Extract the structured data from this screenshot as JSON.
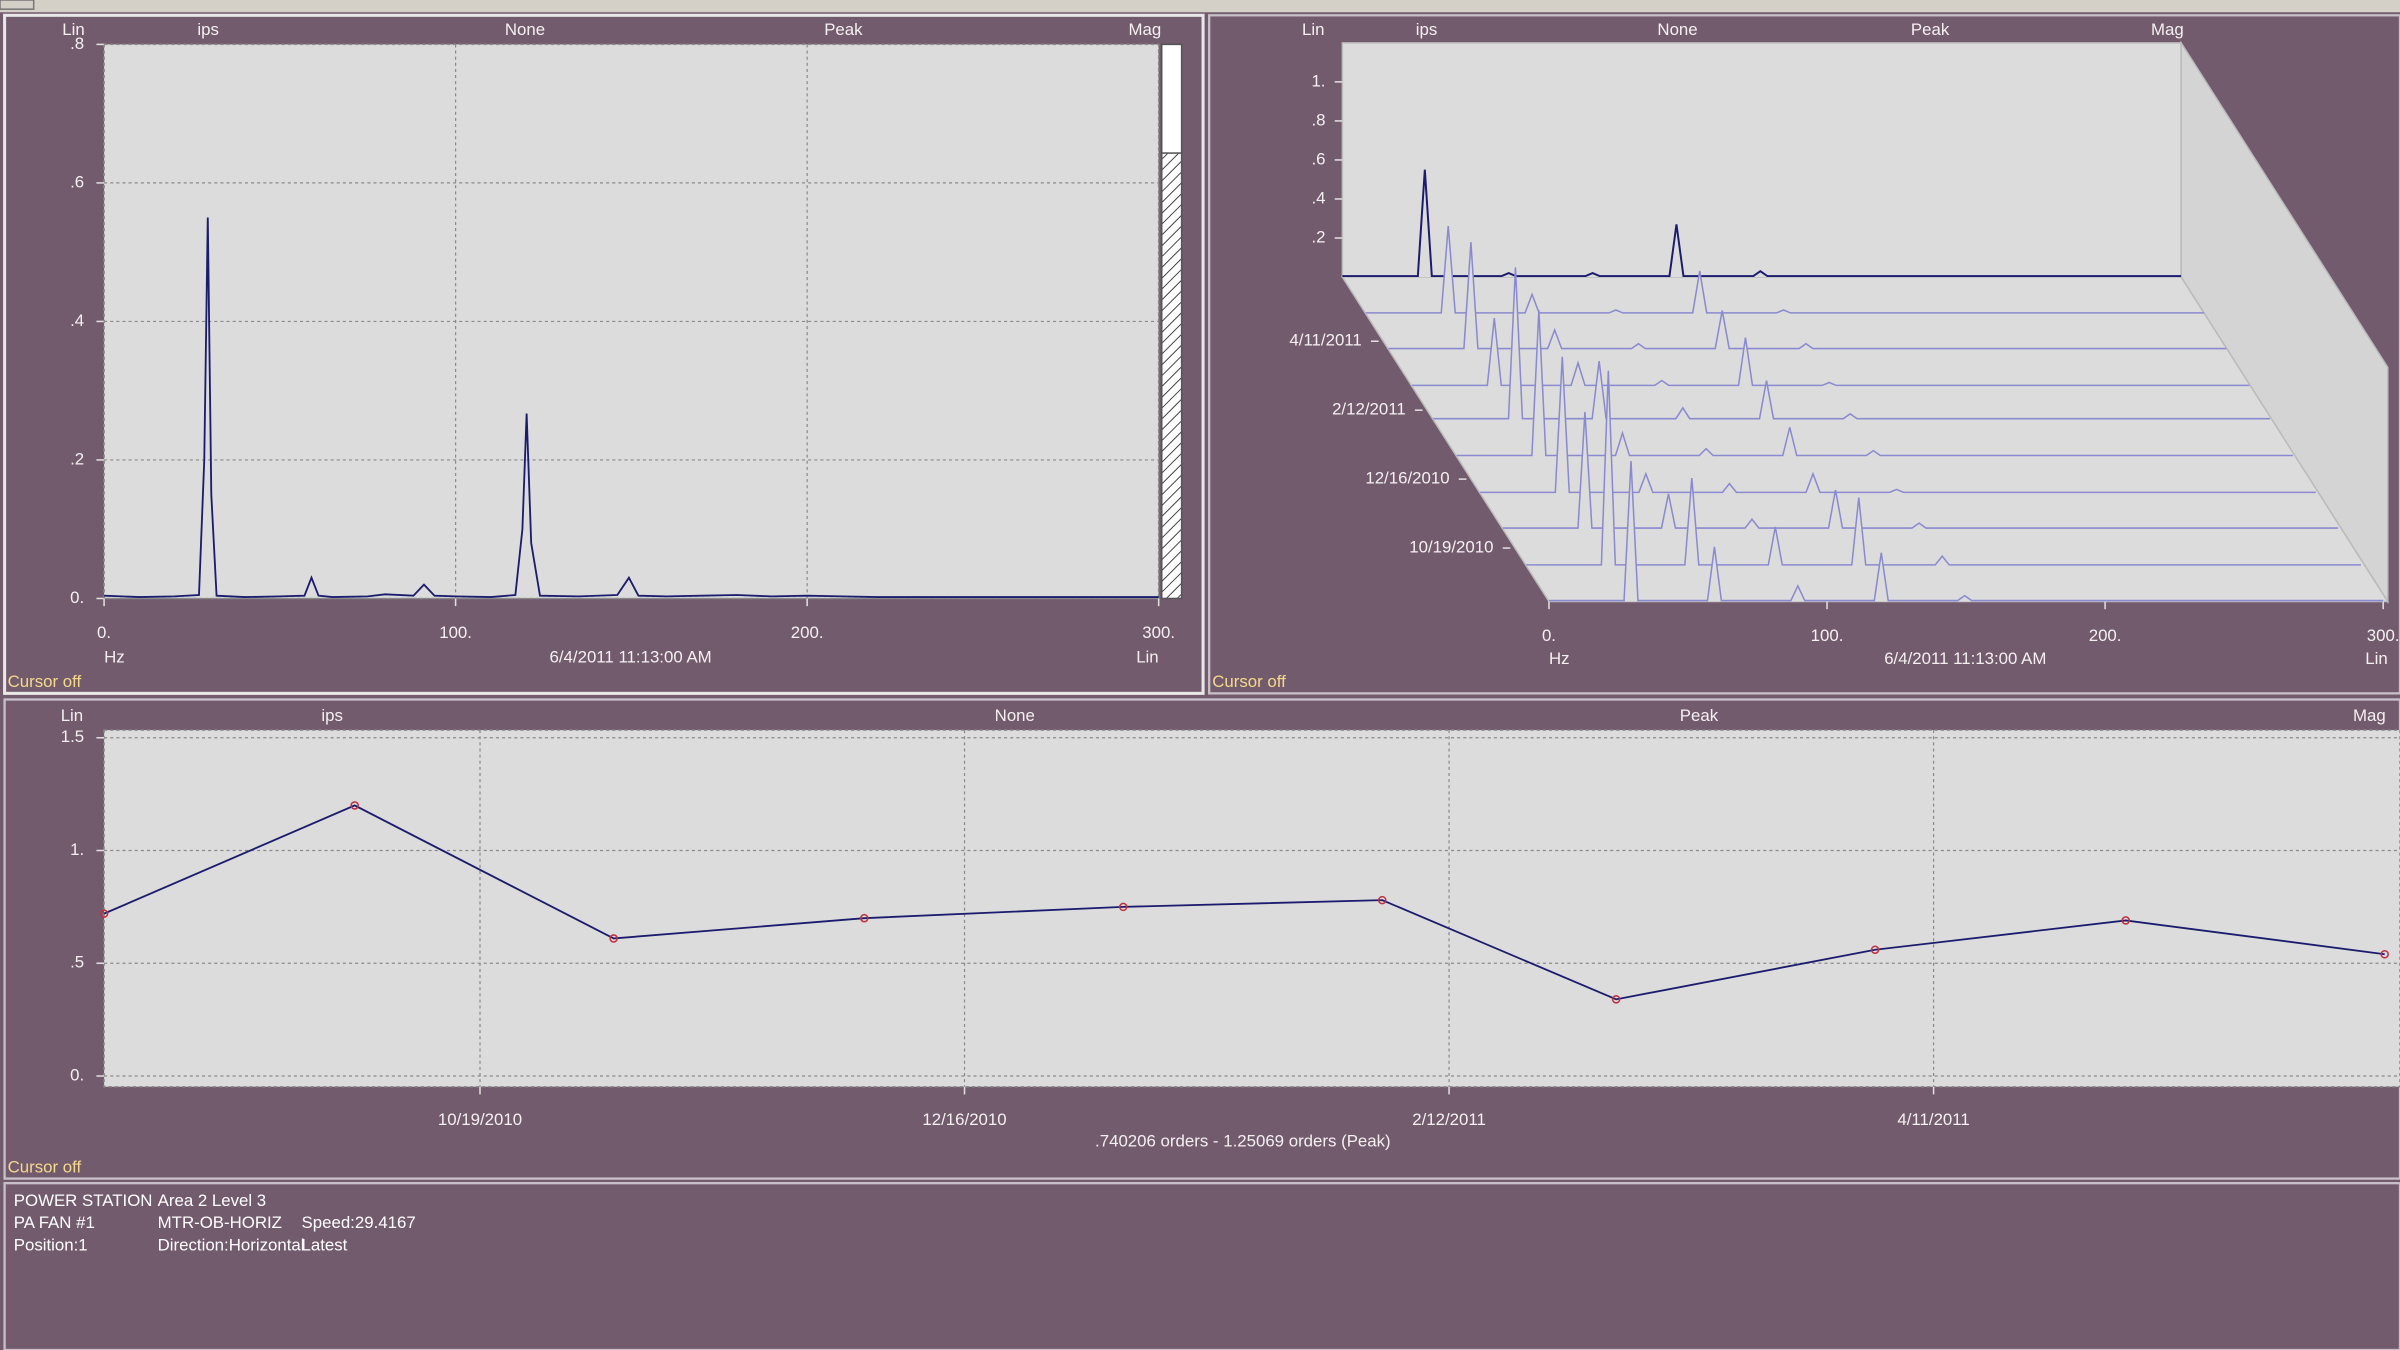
{
  "chart_data": [
    {
      "type": "line",
      "header": [
        "Lin",
        "ips",
        "None",
        "Peak",
        "Mag"
      ],
      "x_unit": "Hz",
      "date": "6/4/2011 11:13:00 AM",
      "x_scale": "Lin",
      "status": "Cursor off",
      "x": [
        0,
        5,
        10,
        20,
        27,
        28.5,
        29.5,
        30.5,
        32,
        40,
        50,
        57,
        59,
        61,
        65,
        75,
        80,
        88,
        91,
        94,
        100,
        110,
        117,
        119,
        120.2,
        121.5,
        124,
        135,
        146,
        149.3,
        152,
        160,
        170,
        180,
        190,
        200,
        210,
        220,
        240,
        260,
        280,
        300
      ],
      "values": [
        0.004,
        0.003,
        0.002,
        0.003,
        0.005,
        0.2,
        0.55,
        0.15,
        0.004,
        0.002,
        0.003,
        0.004,
        0.03,
        0.004,
        0.002,
        0.003,
        0.006,
        0.004,
        0.02,
        0.004,
        0.003,
        0.002,
        0.005,
        0.1,
        0.267,
        0.08,
        0.004,
        0.003,
        0.005,
        0.03,
        0.004,
        0.003,
        0.004,
        0.005,
        0.003,
        0.004,
        0.003,
        0.002,
        0.002,
        0.002,
        0.002,
        0.002
      ],
      "color": "#1c1c6e",
      "xlim": [
        0,
        300
      ],
      "ylim": [
        0,
        0.8
      ],
      "xticks": [
        {
          "value": 0,
          "label": "0."
        },
        {
          "value": 100,
          "label": "100."
        },
        {
          "value": 200,
          "label": "200."
        },
        {
          "value": 300,
          "label": "300."
        }
      ],
      "yticks": [
        {
          "value": 0,
          "label": "0."
        },
        {
          "value": 0.2,
          "label": ".2"
        },
        {
          "value": 0.4,
          "label": ".4"
        },
        {
          "value": 0.6,
          "label": ".6"
        },
        {
          "value": 0.8,
          "label": ".8"
        }
      ],
      "grid": true
    },
    {
      "type": "waterfall",
      "header": [
        "Lin",
        "ips",
        "None",
        "Peak",
        "Mag"
      ],
      "x_unit": "Hz",
      "date": "6/4/2011 11:13:00 AM",
      "x_scale": "Lin",
      "status": "Cursor off",
      "x": [
        0,
        27,
        29.5,
        32,
        57,
        59.5,
        62,
        87,
        89.5,
        92,
        117,
        119.5,
        122,
        147,
        149.5,
        152,
        300
      ],
      "z": [
        "2010-09-04",
        "2010-10-04",
        "2010-11-04",
        "2010-12-04",
        "2011-01-04",
        "2011-02-04",
        "2011-03-04",
        "2011-04-04",
        "2011-05-04",
        "2011-06-04"
      ],
      "series": [
        {
          "color": "#8a8ad0",
          "values": [
            0.005,
            0.005,
            0.72,
            0.005,
            0.005,
            0.28,
            0.005,
            0.005,
            0.08,
            0.005,
            0.005,
            0.25,
            0.005,
            0.005,
            0.03,
            0.005,
            0.005
          ]
        },
        {
          "color": "#8a8ad0",
          "values": [
            0.005,
            0.005,
            1.0,
            0.005,
            0.005,
            0.45,
            0.005,
            0.005,
            0.2,
            0.005,
            0.005,
            0.35,
            0.005,
            0.005,
            0.05,
            0.005,
            0.005
          ]
        },
        {
          "color": "#8a8ad0",
          "values": [
            0.005,
            0.005,
            0.6,
            0.005,
            0.005,
            0.18,
            0.005,
            0.005,
            0.05,
            0.005,
            0.005,
            0.2,
            0.005,
            0.005,
            0.03,
            0.005,
            0.005
          ]
        },
        {
          "color": "#8a8ad0",
          "values": [
            0.005,
            0.005,
            0.7,
            0.005,
            0.005,
            0.1,
            0.005,
            0.005,
            0.05,
            0.005,
            0.005,
            0.1,
            0.005,
            0.005,
            0.02,
            0.005,
            0.005
          ]
        },
        {
          "color": "#8a8ad0",
          "values": [
            0.005,
            0.005,
            0.75,
            0.005,
            0.005,
            0.12,
            0.005,
            0.005,
            0.04,
            0.005,
            0.005,
            0.15,
            0.005,
            0.005,
            0.03,
            0.005,
            0.005
          ]
        },
        {
          "color": "#8a8ad0",
          "values": [
            0.005,
            0.005,
            0.78,
            0.005,
            0.005,
            0.3,
            0.005,
            0.005,
            0.06,
            0.005,
            0.005,
            0.2,
            0.005,
            0.005,
            0.03,
            0.005,
            0.005
          ]
        },
        {
          "color": "#8a8ad0",
          "values": [
            0.005,
            0.005,
            0.35,
            0.005,
            0.005,
            0.12,
            0.005,
            0.005,
            0.03,
            0.005,
            0.005,
            0.25,
            0.005,
            0.005,
            0.02,
            0.005,
            0.005
          ]
        },
        {
          "color": "#8a8ad0",
          "values": [
            0.005,
            0.005,
            0.55,
            0.005,
            0.005,
            0.1,
            0.005,
            0.005,
            0.03,
            0.005,
            0.005,
            0.2,
            0.005,
            0.005,
            0.03,
            0.005,
            0.005
          ]
        },
        {
          "color": "#8a8ad0",
          "values": [
            0.005,
            0.005,
            0.45,
            0.005,
            0.005,
            0.1,
            0.005,
            0.005,
            0.02,
            0.005,
            0.005,
            0.22,
            0.005,
            0.005,
            0.02,
            0.005,
            0.005
          ]
        },
        {
          "color": "#1c1c6e",
          "values": [
            0.005,
            0.005,
            0.55,
            0.005,
            0.005,
            0.02,
            0.005,
            0.005,
            0.02,
            0.005,
            0.005,
            0.27,
            0.005,
            0.005,
            0.03,
            0.005,
            0.005
          ]
        }
      ],
      "xlim": [
        0,
        300
      ],
      "ylim": [
        0,
        1.2
      ],
      "xticks": [
        {
          "value": 0,
          "label": "0."
        },
        {
          "value": 100,
          "label": "100."
        },
        {
          "value": 200,
          "label": "200."
        },
        {
          "value": 300,
          "label": "300."
        }
      ],
      "yticks": [
        {
          "value": 0.2,
          "label": ".2"
        },
        {
          "value": 0.4,
          "label": ".4"
        },
        {
          "value": 0.6,
          "label": ".6"
        },
        {
          "value": 0.8,
          "label": ".8"
        },
        {
          "value": 1,
          "label": "1."
        }
      ],
      "zlim": [
        "2010-09-04",
        "2011-06-04"
      ],
      "zticks": [
        {
          "value": "2010-10-19",
          "label": "10/19/2010"
        },
        {
          "value": "2010-12-16",
          "label": "12/16/2010"
        },
        {
          "value": "2011-02-12",
          "label": "2/12/2011"
        },
        {
          "value": "2011-04-11",
          "label": "4/11/2011"
        }
      ],
      "grid": false
    },
    {
      "type": "line",
      "markers": true,
      "header": [
        "Lin",
        "ips",
        "None",
        "Peak",
        "Mag"
      ],
      "subtitle": ".740206 orders - 1.25069 orders (Peak)",
      "status": "Cursor off",
      "x": [
        "2010-09-04",
        "2010-10-04",
        "2010-11-04",
        "2010-12-04",
        "2011-01-04",
        "2011-02-04",
        "2011-03-04",
        "2011-04-04",
        "2011-05-04",
        "2011-06-04"
      ],
      "values": [
        0.72,
        1.2,
        0.61,
        0.7,
        0.75,
        0.78,
        0.34,
        0.56,
        0.69,
        0.54
      ],
      "color": "#1c1c6e",
      "marker_color": "#c03040",
      "xlim": [
        "2010-09-04",
        "2011-06-04"
      ],
      "ylim": [
        0,
        1.5
      ],
      "xticks": [
        {
          "value": "2010-10-19",
          "label": "10/19/2010"
        },
        {
          "value": "2010-12-16",
          "label": "12/16/2010"
        },
        {
          "value": "2011-02-12",
          "label": "2/12/2011"
        },
        {
          "value": "2011-04-11",
          "label": "4/11/2011"
        }
      ],
      "yticks": [
        {
          "value": 0,
          "label": "0."
        },
        {
          "value": 0.5,
          "label": ".5"
        },
        {
          "value": 1,
          "label": "1."
        },
        1.5
      ],
      "grid": true
    }
  ],
  "info": {
    "rows": [
      [
        "POWER STATION",
        "Area 2 Level 3"
      ],
      [
        "PA FAN #1",
        "MTR-OB-HORIZ",
        "Speed:29.4167"
      ],
      [
        "Position:1",
        "Direction:Horizontal",
        "Latest"
      ]
    ]
  }
}
